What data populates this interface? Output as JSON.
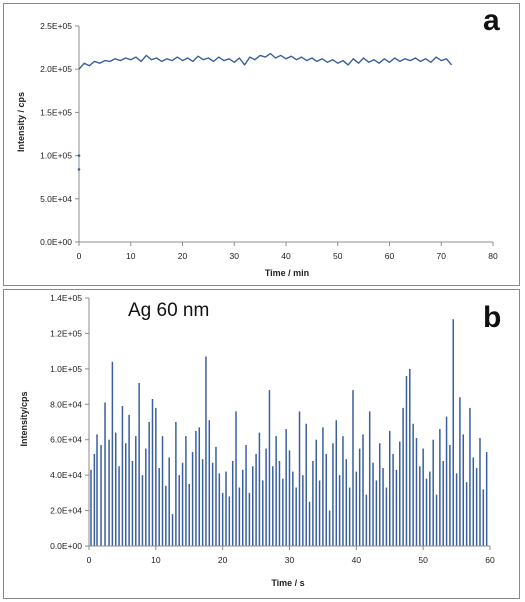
{
  "chart_data": [
    {
      "type": "line",
      "panel_label": "a",
      "xlabel": "Time / min",
      "ylabel": "Intensity / cps",
      "xlim": [
        0,
        80
      ],
      "ylim": [
        0,
        250000
      ],
      "x_ticks": [
        "0",
        "10",
        "20",
        "30",
        "40",
        "50",
        "60",
        "70",
        "80"
      ],
      "y_ticks": [
        "0.0E+00",
        "5.0E+04",
        "1.0E+05",
        "1.5E+05",
        "2.0E+05",
        "2.5E+05"
      ],
      "series_color": "#3a5f9e",
      "outlier_points": [
        {
          "x": 0,
          "y": 100000
        },
        {
          "x": 0,
          "y": 84000
        }
      ],
      "x": [
        0,
        1,
        2,
        3,
        4,
        5,
        6,
        7,
        8,
        9,
        10,
        11,
        12,
        13,
        14,
        15,
        16,
        17,
        18,
        19,
        20,
        21,
        22,
        23,
        24,
        25,
        26,
        27,
        28,
        29,
        30,
        31,
        32,
        33,
        34,
        35,
        36,
        37,
        38,
        39,
        40,
        41,
        42,
        43,
        44,
        45,
        46,
        47,
        48,
        49,
        50,
        51,
        52,
        53,
        54,
        55,
        56,
        57,
        58,
        59,
        60,
        61,
        62,
        63,
        64,
        65,
        66,
        67,
        68,
        69,
        70,
        71,
        72
      ],
      "y": [
        200000,
        207000,
        204000,
        209000,
        207000,
        210000,
        209000,
        212000,
        210000,
        213000,
        211000,
        214000,
        209000,
        216000,
        211000,
        213000,
        209000,
        212000,
        210000,
        214000,
        210000,
        213000,
        209000,
        215000,
        211000,
        213000,
        209000,
        214000,
        210000,
        212000,
        208000,
        213000,
        205000,
        214000,
        211000,
        216000,
        214000,
        218000,
        213000,
        216000,
        212000,
        215000,
        211000,
        214000,
        210000,
        213000,
        209000,
        212000,
        208000,
        211000,
        207000,
        210000,
        205000,
        212000,
        207000,
        213000,
        208000,
        211000,
        207000,
        212000,
        208000,
        213000,
        209000,
        212000,
        210000,
        213000,
        209000,
        212000,
        208000,
        214000,
        210000,
        212000,
        205000
      ]
    },
    {
      "type": "bar",
      "panel_label": "b",
      "annotation": "Ag 60 nm",
      "xlabel": "Time / s",
      "ylabel": "Intensity/cps",
      "xlim": [
        0,
        60
      ],
      "ylim": [
        0,
        140000
      ],
      "x_ticks": [
        "0",
        "10",
        "20",
        "30",
        "40",
        "50",
        "60"
      ],
      "y_ticks": [
        "0.0E+00",
        "2.0E+04",
        "4.0E+04",
        "6.0E+04",
        "8.0E+04",
        "1.0E+05",
        "1.2E+05",
        "1.4E+05"
      ],
      "series_color": "#3a5f9e",
      "peaks": [
        {
          "x": 0.3,
          "y": 43000
        },
        {
          "x": 0.8,
          "y": 52000
        },
        {
          "x": 1.2,
          "y": 63000
        },
        {
          "x": 1.8,
          "y": 57000
        },
        {
          "x": 2.4,
          "y": 81000
        },
        {
          "x": 3.0,
          "y": 60000
        },
        {
          "x": 3.5,
          "y": 104000
        },
        {
          "x": 4.0,
          "y": 64000
        },
        {
          "x": 4.5,
          "y": 45000
        },
        {
          "x": 5.0,
          "y": 79000
        },
        {
          "x": 5.5,
          "y": 58000
        },
        {
          "x": 6.0,
          "y": 74000
        },
        {
          "x": 6.5,
          "y": 48000
        },
        {
          "x": 7.0,
          "y": 62000
        },
        {
          "x": 7.5,
          "y": 92000
        },
        {
          "x": 8.0,
          "y": 40000
        },
        {
          "x": 8.5,
          "y": 55000
        },
        {
          "x": 9.0,
          "y": 70000
        },
        {
          "x": 9.5,
          "y": 83000
        },
        {
          "x": 10.0,
          "y": 78000
        },
        {
          "x": 10.5,
          "y": 44000
        },
        {
          "x": 11.0,
          "y": 62000
        },
        {
          "x": 11.5,
          "y": 34000
        },
        {
          "x": 12.0,
          "y": 50000
        },
        {
          "x": 12.5,
          "y": 18000
        },
        {
          "x": 13.0,
          "y": 70000
        },
        {
          "x": 13.5,
          "y": 40000
        },
        {
          "x": 14.0,
          "y": 47000
        },
        {
          "x": 14.5,
          "y": 62000
        },
        {
          "x": 15.0,
          "y": 35000
        },
        {
          "x": 15.5,
          "y": 53000
        },
        {
          "x": 16.0,
          "y": 65000
        },
        {
          "x": 16.5,
          "y": 67000
        },
        {
          "x": 17.0,
          "y": 49000
        },
        {
          "x": 17.5,
          "y": 107000
        },
        {
          "x": 18.0,
          "y": 71000
        },
        {
          "x": 18.5,
          "y": 47000
        },
        {
          "x": 19.0,
          "y": 56000
        },
        {
          "x": 19.5,
          "y": 41000
        },
        {
          "x": 20.0,
          "y": 30000
        },
        {
          "x": 20.5,
          "y": 42000
        },
        {
          "x": 21.0,
          "y": 28000
        },
        {
          "x": 21.5,
          "y": 48000
        },
        {
          "x": 22.0,
          "y": 76000
        },
        {
          "x": 22.5,
          "y": 33000
        },
        {
          "x": 23.0,
          "y": 43000
        },
        {
          "x": 23.5,
          "y": 57000
        },
        {
          "x": 24.0,
          "y": 30000
        },
        {
          "x": 24.5,
          "y": 45000
        },
        {
          "x": 25.0,
          "y": 52000
        },
        {
          "x": 25.5,
          "y": 64000
        },
        {
          "x": 26.0,
          "y": 37000
        },
        {
          "x": 26.5,
          "y": 55000
        },
        {
          "x": 27.0,
          "y": 88000
        },
        {
          "x": 27.5,
          "y": 45000
        },
        {
          "x": 28.0,
          "y": 62000
        },
        {
          "x": 28.5,
          "y": 48000
        },
        {
          "x": 29.0,
          "y": 38000
        },
        {
          "x": 29.5,
          "y": 66000
        },
        {
          "x": 30.0,
          "y": 54000
        },
        {
          "x": 30.5,
          "y": 42000
        },
        {
          "x": 31.0,
          "y": 33000
        },
        {
          "x": 31.5,
          "y": 76000
        },
        {
          "x": 32.0,
          "y": 40000
        },
        {
          "x": 32.5,
          "y": 69000
        },
        {
          "x": 33.0,
          "y": 25000
        },
        {
          "x": 33.5,
          "y": 48000
        },
        {
          "x": 34.0,
          "y": 60000
        },
        {
          "x": 34.5,
          "y": 37000
        },
        {
          "x": 35.0,
          "y": 67000
        },
        {
          "x": 35.5,
          "y": 52000
        },
        {
          "x": 36.0,
          "y": 20000
        },
        {
          "x": 36.5,
          "y": 58000
        },
        {
          "x": 37.0,
          "y": 71000
        },
        {
          "x": 37.5,
          "y": 40000
        },
        {
          "x": 38.0,
          "y": 62000
        },
        {
          "x": 38.5,
          "y": 49000
        },
        {
          "x": 39.0,
          "y": 33000
        },
        {
          "x": 39.5,
          "y": 88000
        },
        {
          "x": 40.0,
          "y": 42000
        },
        {
          "x": 40.5,
          "y": 55000
        },
        {
          "x": 41.0,
          "y": 63000
        },
        {
          "x": 41.5,
          "y": 29000
        },
        {
          "x": 42.0,
          "y": 76000
        },
        {
          "x": 42.5,
          "y": 47000
        },
        {
          "x": 43.0,
          "y": 37000
        },
        {
          "x": 43.5,
          "y": 58000
        },
        {
          "x": 44.0,
          "y": 44000
        },
        {
          "x": 44.5,
          "y": 33000
        },
        {
          "x": 45.0,
          "y": 65000
        },
        {
          "x": 45.5,
          "y": 52000
        },
        {
          "x": 46.0,
          "y": 43000
        },
        {
          "x": 46.5,
          "y": 59000
        },
        {
          "x": 47.0,
          "y": 78000
        },
        {
          "x": 47.5,
          "y": 96000
        },
        {
          "x": 48.0,
          "y": 100000
        },
        {
          "x": 48.5,
          "y": 69000
        },
        {
          "x": 49.0,
          "y": 61000
        },
        {
          "x": 49.5,
          "y": 45000
        },
        {
          "x": 50.0,
          "y": 55000
        },
        {
          "x": 50.5,
          "y": 38000
        },
        {
          "x": 51.0,
          "y": 42000
        },
        {
          "x": 51.5,
          "y": 60000
        },
        {
          "x": 52.0,
          "y": 29000
        },
        {
          "x": 52.5,
          "y": 66000
        },
        {
          "x": 53.0,
          "y": 48000
        },
        {
          "x": 53.5,
          "y": 73000
        },
        {
          "x": 54.0,
          "y": 57000
        },
        {
          "x": 54.5,
          "y": 128000
        },
        {
          "x": 55.0,
          "y": 41000
        },
        {
          "x": 55.5,
          "y": 84000
        },
        {
          "x": 56.0,
          "y": 63000
        },
        {
          "x": 56.5,
          "y": 36000
        },
        {
          "x": 57.0,
          "y": 78000
        },
        {
          "x": 57.5,
          "y": 50000
        },
        {
          "x": 58.0,
          "y": 44000
        },
        {
          "x": 58.5,
          "y": 61000
        },
        {
          "x": 59.0,
          "y": 32000
        },
        {
          "x": 59.5,
          "y": 53000
        }
      ]
    }
  ]
}
